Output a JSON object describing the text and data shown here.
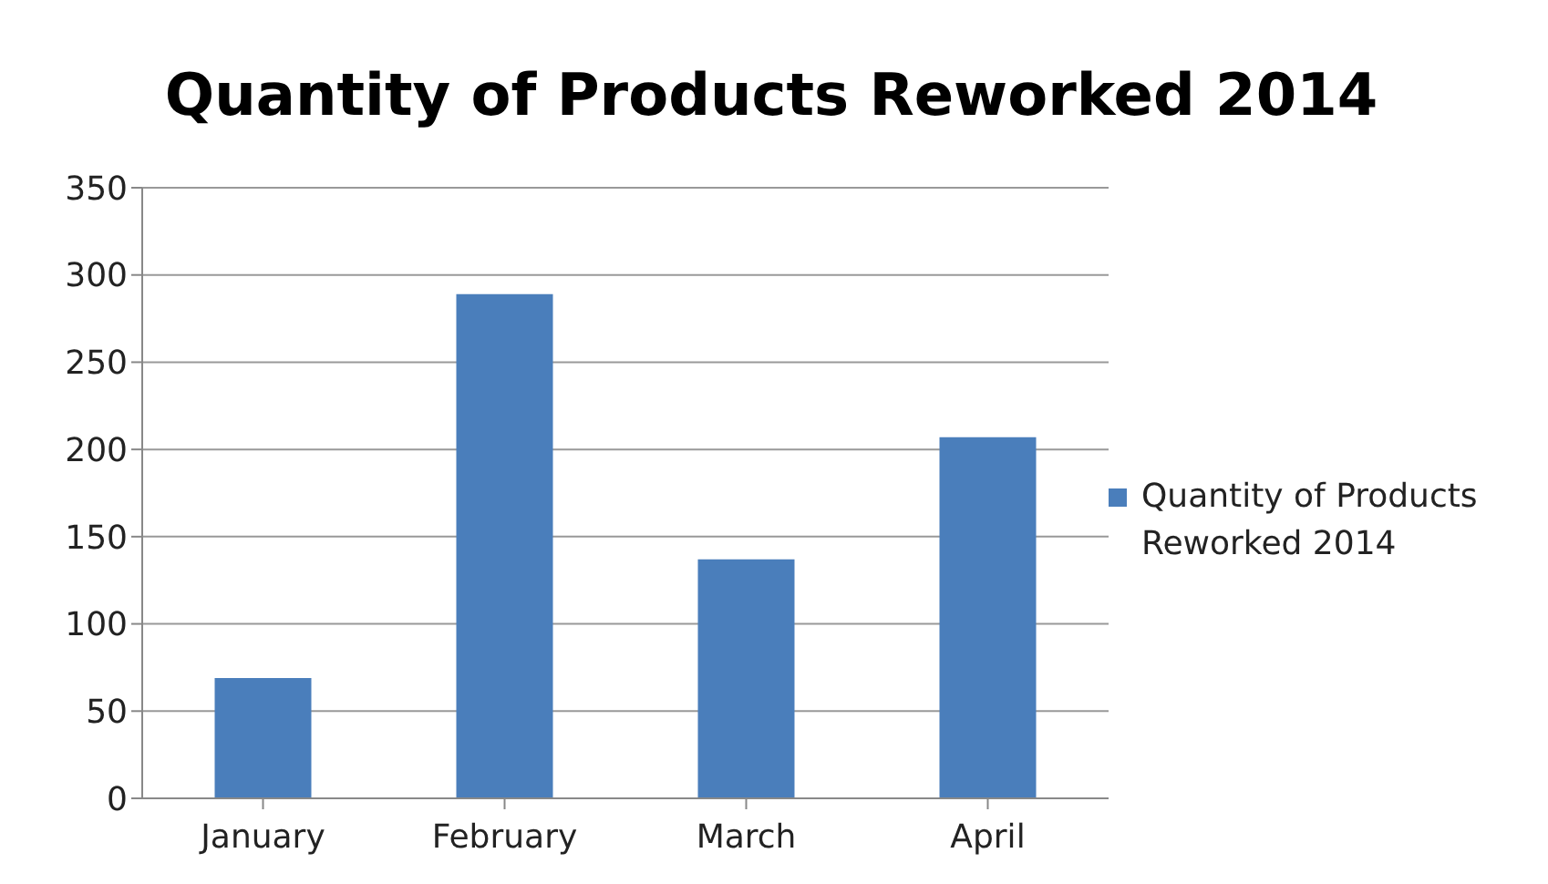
{
  "chart_data": {
    "type": "bar",
    "title": "Quantity of Products Reworked 2014",
    "categories": [
      "January",
      "February",
      "March",
      "April"
    ],
    "series": [
      {
        "name": "Quantity of Products Reworked 2014",
        "color": "#4a7ebb",
        "values": [
          69,
          289,
          137,
          207
        ]
      }
    ],
    "ylim": [
      0,
      350
    ],
    "yticks": [
      0,
      50,
      100,
      150,
      200,
      250,
      300,
      350
    ],
    "grid": "y",
    "legend": "right"
  }
}
